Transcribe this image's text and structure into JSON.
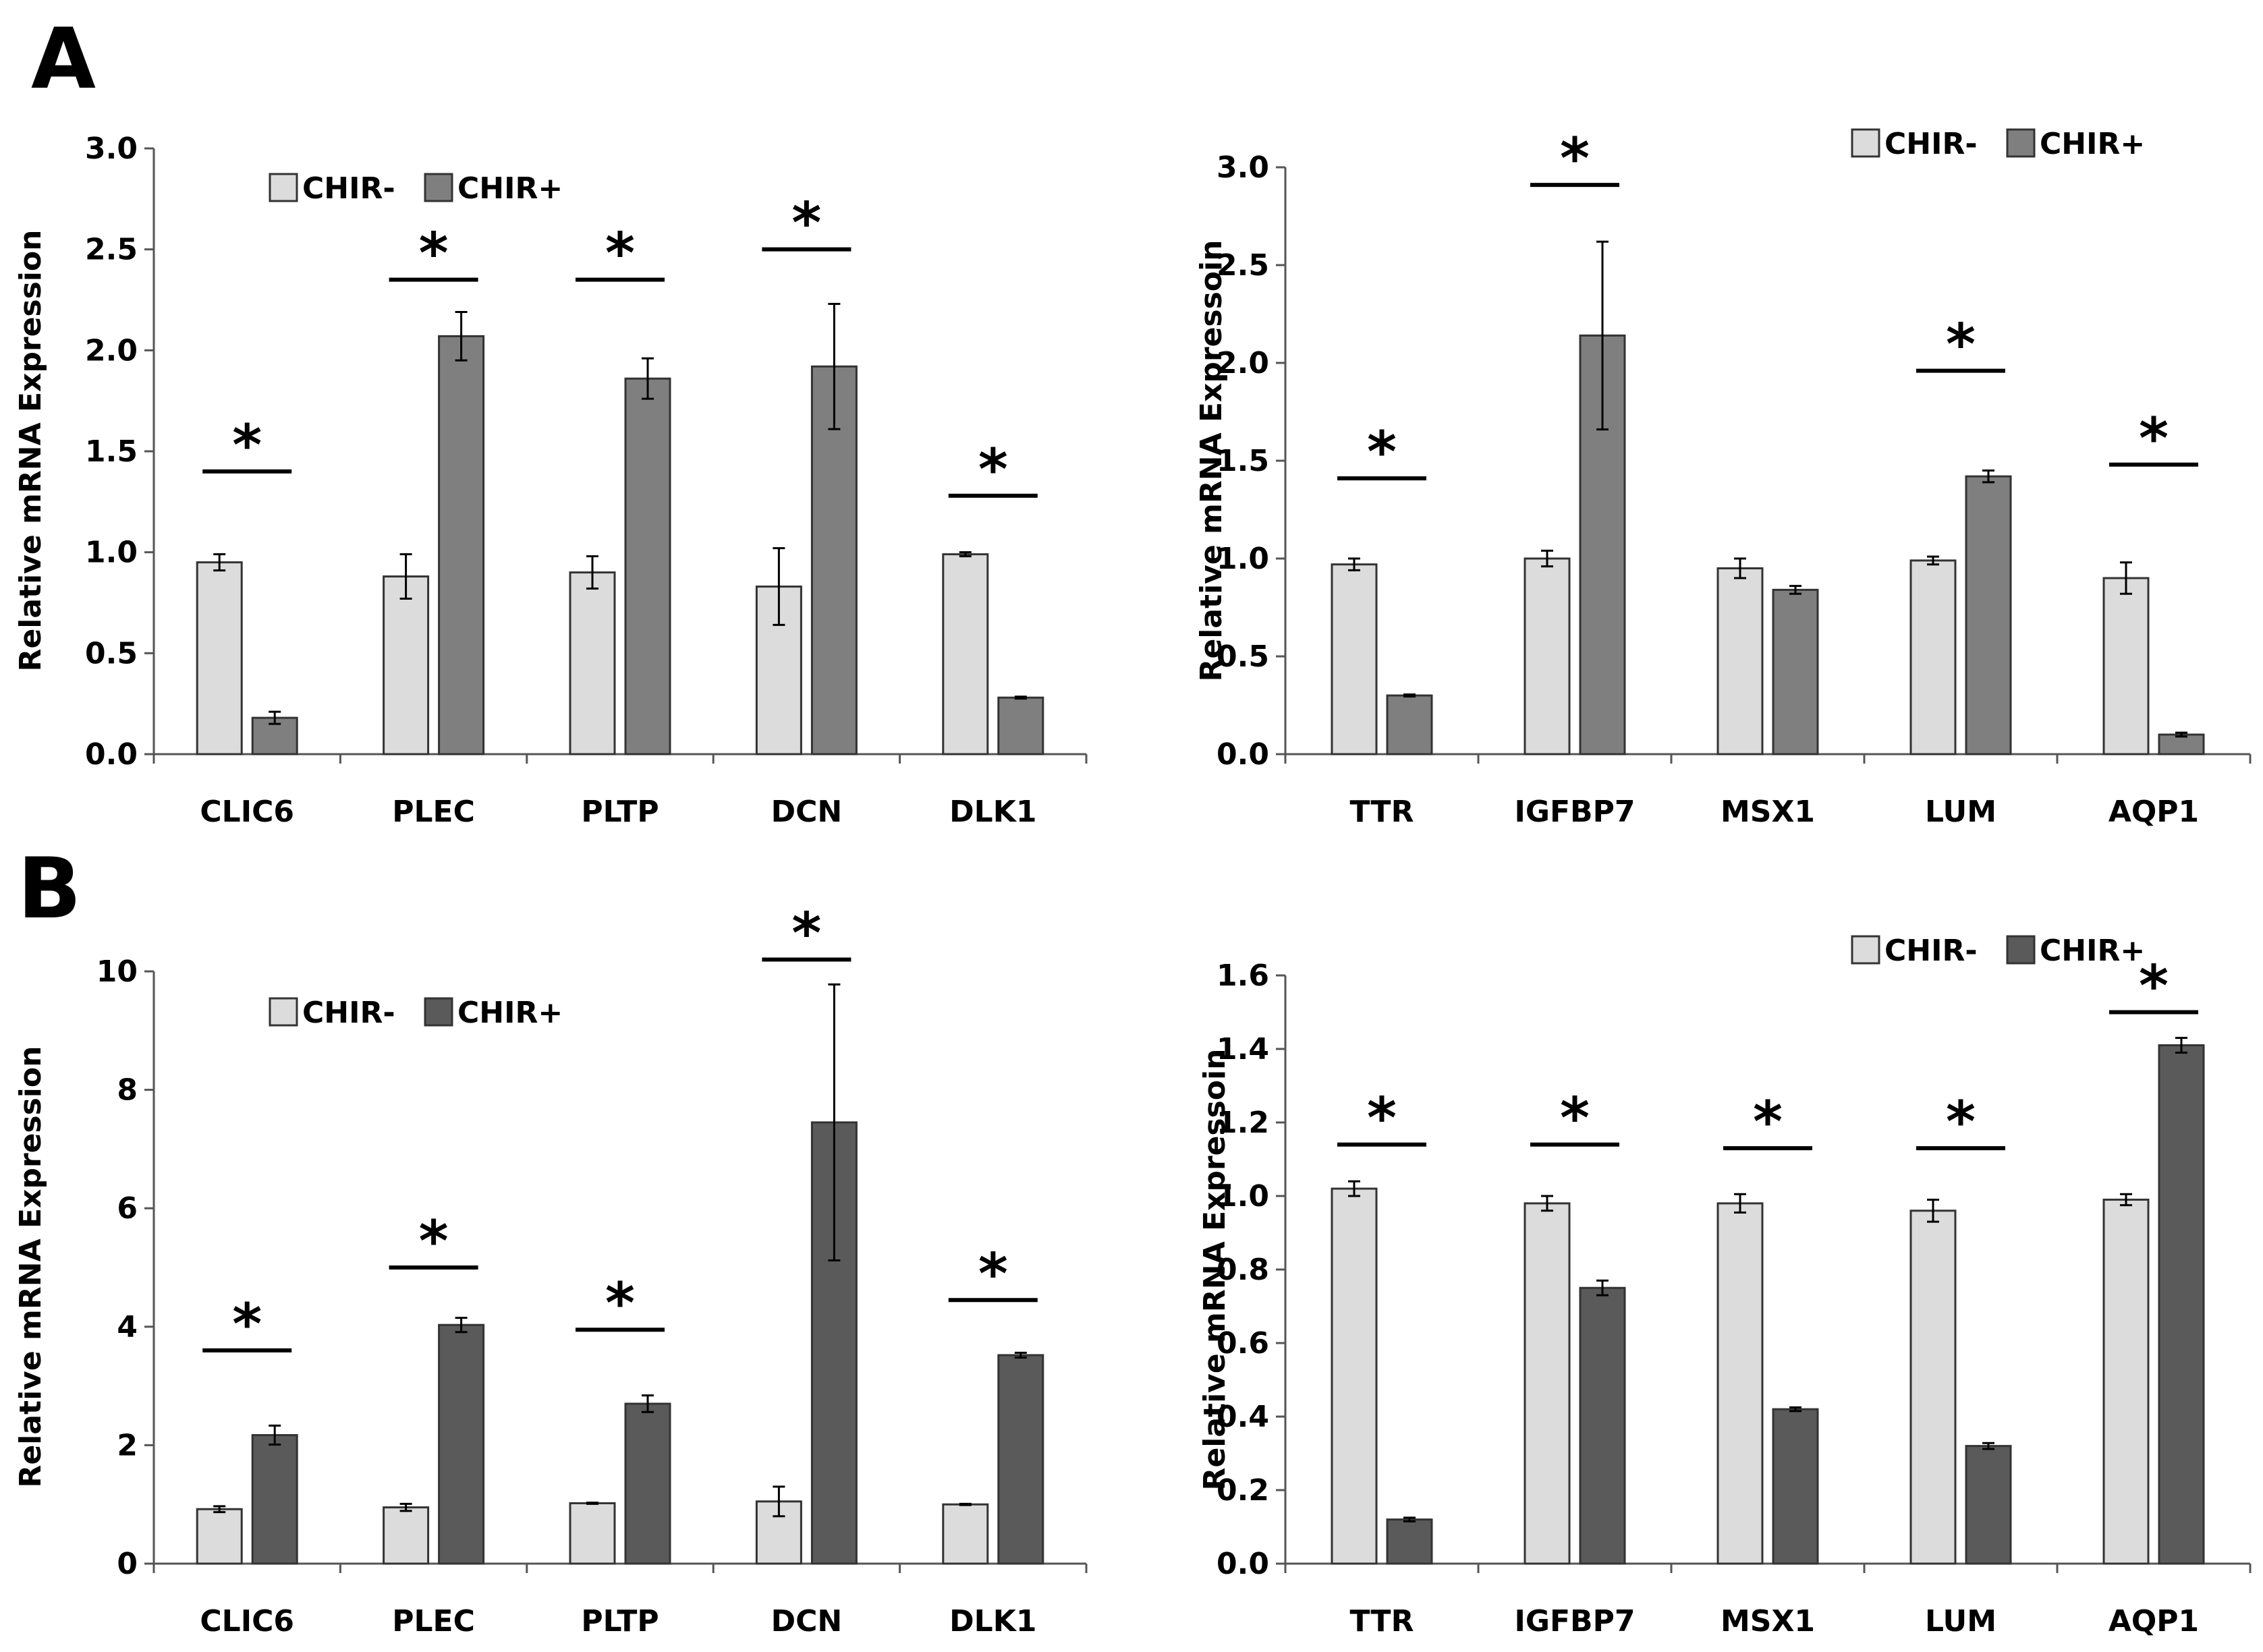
{
  "panel_labels": [
    "A",
    "B"
  ],
  "colors": {
    "chir_minus": "#dcdcdc",
    "chir_plus_a": "#7f7f7f",
    "chir_plus_b": "#5a5a5a",
    "axis": "#000000"
  },
  "chart_data": [
    {
      "type": "bar",
      "panel": "A",
      "position": "left",
      "ylabel": "Relative mRNA Expression",
      "ylim": [
        0,
        3.0
      ],
      "yticks": [
        "0.0",
        "0.5",
        "1.0",
        "1.5",
        "2.0",
        "2.5",
        "3.0"
      ],
      "ytick_values": [
        0,
        0.5,
        1.0,
        1.5,
        2.0,
        2.5,
        3.0
      ],
      "categories": [
        "CLIC6",
        "PLEC",
        "PLTP",
        "DCN",
        "DLK1"
      ],
      "legend": [
        "CHIR-",
        "CHIR+"
      ],
      "legend_position": "top-left",
      "series": [
        {
          "name": "CHIR-",
          "values": [
            0.95,
            0.88,
            0.9,
            0.83,
            0.99
          ],
          "errors": [
            0.04,
            0.11,
            0.08,
            0.19,
            0.01
          ]
        },
        {
          "name": "CHIR+",
          "values": [
            0.18,
            2.07,
            1.86,
            1.92,
            0.28
          ],
          "errors": [
            0.03,
            0.12,
            0.1,
            0.31,
            0.005
          ]
        }
      ],
      "significance": [
        {
          "category": "CLIC6",
          "label": "*",
          "y": 1.4
        },
        {
          "category": "PLEC",
          "label": "*",
          "y": 2.35
        },
        {
          "category": "PLTP",
          "label": "*",
          "y": 2.35
        },
        {
          "category": "DCN",
          "label": "*",
          "y": 2.5
        },
        {
          "category": "DLK1",
          "label": "*",
          "y": 1.28
        }
      ]
    },
    {
      "type": "bar",
      "panel": "A",
      "position": "right",
      "ylabel": "Relative mRNA Expressoin",
      "ylim": [
        0,
        3.0
      ],
      "yticks": [
        "0.0",
        "0.5",
        "1.0",
        "1.5",
        "2.0",
        "2.5",
        "3.0"
      ],
      "ytick_values": [
        0,
        0.5,
        1.0,
        1.5,
        2.0,
        2.5,
        3.0
      ],
      "categories": [
        "TTR",
        "IGFBP7",
        "MSX1",
        "LUM",
        "AQP1"
      ],
      "legend": [
        "CHIR-",
        "CHIR+"
      ],
      "legend_position": "top-right",
      "series": [
        {
          "name": "CHIR-",
          "values": [
            0.97,
            1.0,
            0.95,
            0.99,
            0.9
          ],
          "errors": [
            0.03,
            0.04,
            0.05,
            0.02,
            0.08
          ]
        },
        {
          "name": "CHIR+",
          "values": [
            0.3,
            2.14,
            0.84,
            1.42,
            0.1
          ],
          "errors": [
            0.005,
            0.48,
            0.02,
            0.03,
            0.01
          ]
        }
      ],
      "significance": [
        {
          "category": "TTR",
          "label": "*",
          "y": 1.41
        },
        {
          "category": "IGFBP7",
          "label": "*",
          "y": 2.91
        },
        {
          "category": "LUM",
          "label": "*",
          "y": 1.96
        },
        {
          "category": "AQP1",
          "label": "*",
          "y": 1.48
        }
      ]
    },
    {
      "type": "bar",
      "panel": "B",
      "position": "left",
      "ylabel": "Relative mRNA Expression",
      "ylim": [
        0,
        10
      ],
      "yticks": [
        "0",
        "2",
        "4",
        "6",
        "8",
        "10"
      ],
      "ytick_values": [
        0,
        2,
        4,
        6,
        8,
        10
      ],
      "categories": [
        "CLIC6",
        "PLEC",
        "PLTP",
        "DCN",
        "DLK1"
      ],
      "legend": [
        "CHIR-",
        "CHIR+"
      ],
      "legend_position": "top-left",
      "series": [
        {
          "name": "CHIR-",
          "values": [
            0.92,
            0.95,
            1.02,
            1.05,
            1.0
          ],
          "errors": [
            0.05,
            0.06,
            0.01,
            0.25,
            0.01
          ]
        },
        {
          "name": "CHIR+",
          "values": [
            2.17,
            4.03,
            2.7,
            7.45,
            3.52
          ],
          "errors": [
            0.16,
            0.12,
            0.14,
            2.33,
            0.04
          ]
        }
      ],
      "significance": [
        {
          "category": "CLIC6",
          "label": "*",
          "y": 3.6
        },
        {
          "category": "PLEC",
          "label": "*",
          "y": 5.0
        },
        {
          "category": "PLTP",
          "label": "*",
          "y": 3.95
        },
        {
          "category": "DCN",
          "label": "*",
          "y": 10.2
        },
        {
          "category": "DLK1",
          "label": "*",
          "y": 4.45
        }
      ]
    },
    {
      "type": "bar",
      "panel": "B",
      "position": "right",
      "ylabel": "Relative mRNA Expressoin",
      "ylim": [
        0,
        1.6
      ],
      "yticks": [
        "0.0",
        "0.2",
        "0.4",
        "0.6",
        "0.8",
        "1.0",
        "1.2",
        "1.4",
        "1.6"
      ],
      "ytick_values": [
        0,
        0.2,
        0.4,
        0.6,
        0.8,
        1.0,
        1.2,
        1.4,
        1.6
      ],
      "categories": [
        "TTR",
        "IGFBP7",
        "MSX1",
        "LUM",
        "AQP1"
      ],
      "legend": [
        "CHIR-",
        "CHIR+"
      ],
      "legend_position": "top-right",
      "series": [
        {
          "name": "CHIR-",
          "values": [
            1.02,
            0.98,
            0.98,
            0.96,
            0.99
          ],
          "errors": [
            0.02,
            0.02,
            0.025,
            0.03,
            0.015
          ]
        },
        {
          "name": "CHIR+",
          "values": [
            0.12,
            0.75,
            0.42,
            0.32,
            1.41
          ],
          "errors": [
            0.005,
            0.02,
            0.005,
            0.008,
            0.02
          ]
        }
      ],
      "significance": [
        {
          "category": "TTR",
          "label": "*",
          "y": 1.14
        },
        {
          "category": "IGFBP7",
          "label": "*",
          "y": 1.14
        },
        {
          "category": "MSX1",
          "label": "*",
          "y": 1.13
        },
        {
          "category": "LUM",
          "label": "*",
          "y": 1.13
        },
        {
          "category": "AQP1",
          "label": "*",
          "y": 1.5
        }
      ]
    }
  ]
}
